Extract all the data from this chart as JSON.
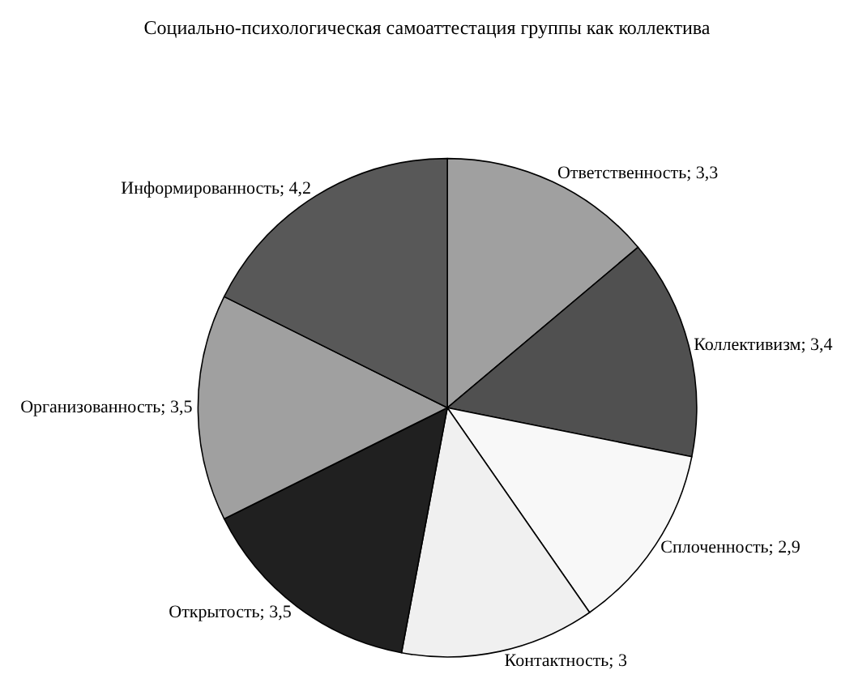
{
  "chart_data": {
    "type": "pie",
    "title": "Социально-психологическая самоаттестация группы как коллектива",
    "categories": [
      "Ответственность",
      "Коллективизм",
      "Сплоченность",
      "Контактность",
      "Открытость",
      "Организованность",
      "Информированность"
    ],
    "values": [
      3.3,
      3.4,
      2.9,
      3,
      3.5,
      3.5,
      4.2
    ],
    "value_labels": [
      "3,3",
      "3,4",
      "2,9",
      "3",
      "3,5",
      "3,5",
      "4,2"
    ],
    "colors": [
      "#a0a0a0",
      "#505050",
      "#f8f8f8",
      "#f0f0f0",
      "#202020",
      "#a0a0a0",
      "#585858"
    ],
    "legend": false
  }
}
